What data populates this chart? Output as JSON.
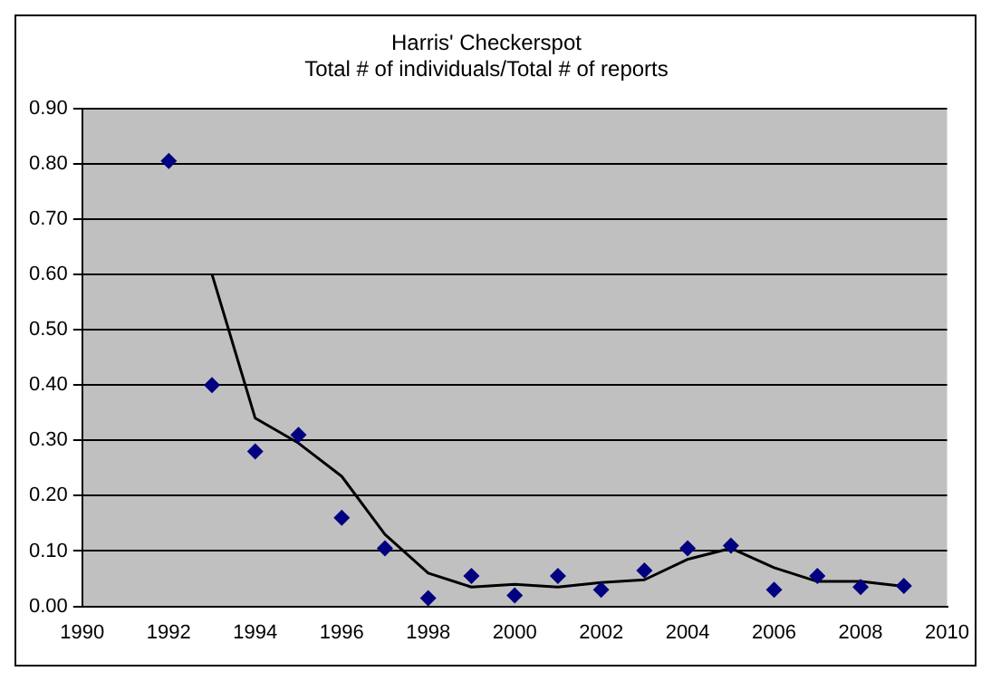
{
  "chart_data": {
    "type": "scatter",
    "title": [
      "Harris' Checkerspot",
      "Total # of individuals/Total # of reports"
    ],
    "x": [
      1992,
      1993,
      1994,
      1995,
      1996,
      1997,
      1998,
      1999,
      2000,
      2001,
      2002,
      2003,
      2004,
      2005,
      2006,
      2007,
      2008,
      2009
    ],
    "series": [
      {
        "color": "#000080",
        "marker": "diamond",
        "values": [
          0.805,
          0.4,
          0.28,
          0.31,
          0.16,
          0.105,
          0.015,
          0.055,
          0.02,
          0.055,
          0.03,
          0.065,
          0.105,
          0.11,
          0.03,
          0.055,
          0.035,
          0.037
        ]
      },
      {
        "type": "line",
        "color": "#000000",
        "marker": "none",
        "line_style": "solid",
        "x": [
          1993,
          1994,
          1995,
          1996,
          1997,
          1998,
          1999,
          2000,
          2001,
          2002,
          2003,
          2004,
          2005,
          2006,
          2007,
          2008,
          2009
        ],
        "values": [
          0.6,
          0.34,
          0.295,
          0.235,
          0.13,
          0.06,
          0.035,
          0.04,
          0.035,
          0.043,
          0.048,
          0.085,
          0.105,
          0.07,
          0.045,
          0.045,
          0.036
        ]
      }
    ],
    "xlim": [
      1990,
      2010
    ],
    "xticks": [
      1990,
      1992,
      1994,
      1996,
      1998,
      2000,
      2002,
      2004,
      2006,
      2008,
      2010
    ],
    "ylim": [
      0,
      0.9
    ],
    "yticks": [
      {
        "value": 0,
        "label": "0.00"
      },
      {
        "value": 0.1,
        "label": "0.10"
      },
      {
        "value": 0.2,
        "label": "0.20"
      },
      {
        "value": 0.3,
        "label": "0.30"
      },
      {
        "value": 0.4,
        "label": "0.40"
      },
      {
        "value": 0.5,
        "label": "0.50"
      },
      {
        "value": 0.6,
        "label": "0.60"
      },
      {
        "value": 0.7,
        "label": "0.70"
      },
      {
        "value": 0.8,
        "label": "0.80"
      },
      {
        "value": 0.9,
        "label": "0.90"
      }
    ],
    "grid": "y",
    "legend": false
  }
}
